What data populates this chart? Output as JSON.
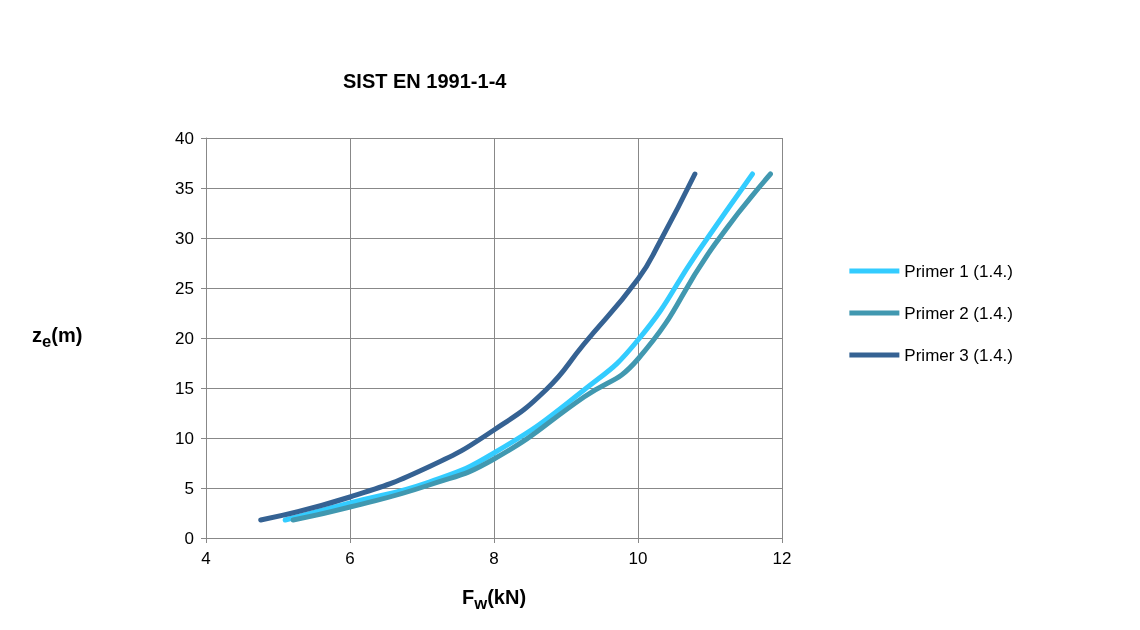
{
  "chart_data": {
    "type": "line",
    "title": "SIST EN 1991-1-4",
    "xlabel": "F$_{w}$(kN)",
    "ylabel": "z$_{e}$(m)",
    "xlim": [
      4,
      12
    ],
    "xticks": [
      4,
      6,
      8,
      10,
      12
    ],
    "ylim": [
      0,
      40
    ],
    "yticks": [
      0,
      5,
      10,
      15,
      20,
      25,
      30,
      35,
      40
    ],
    "grid": true,
    "legend": "right",
    "marker": "none",
    "line_style": "solid",
    "series": [
      {
        "name": "Primer 1 (1.4.)",
        "color": "#33ccff",
        "x": [
          5.1,
          6,
          7.1,
          8,
          9.25,
          10,
          10.85,
          11.59
        ],
        "values": [
          1.8,
          3.5,
          5.6,
          8.5,
          14.8,
          19.8,
          28.8,
          36.4
        ]
      },
      {
        "name": "Primer 2 (1.4.)",
        "color": "#4198b0",
        "x": [
          5.21,
          6,
          7.1,
          8,
          9.25,
          10,
          11.07,
          11.84
        ],
        "values": [
          1.8,
          3.1,
          5.3,
          7.9,
          14.1,
          17.9,
          29.4,
          36.4
        ]
      },
      {
        "name": "Primer 3 (1.4.)",
        "color": "#356293",
        "x": [
          4.76,
          6,
          7.12,
          8,
          8.72,
          9.25,
          10,
          10.31,
          10.79
        ],
        "values": [
          1.8,
          4.1,
          7.2,
          10.8,
          14.8,
          19.4,
          25.9,
          29.7,
          36.4
        ]
      }
    ]
  }
}
